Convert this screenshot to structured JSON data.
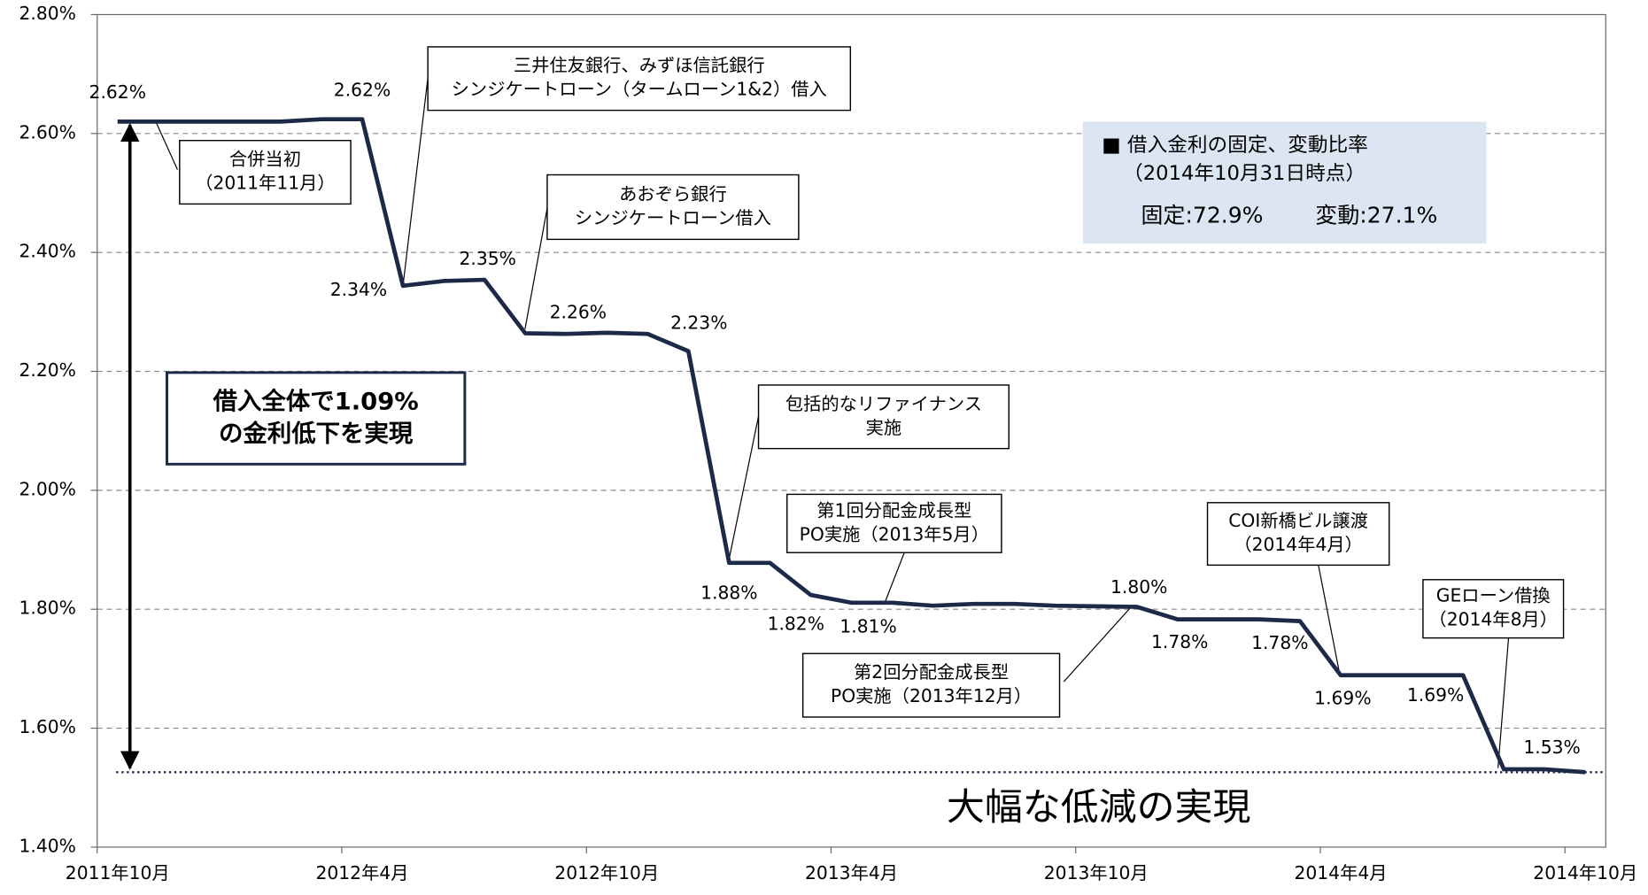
{
  "chart_data": {
    "type": "line",
    "categories": [
      "2011年10月",
      null,
      null,
      null,
      null,
      null,
      "2012年4月",
      null,
      null,
      null,
      null,
      null,
      "2012年10月",
      null,
      null,
      null,
      null,
      null,
      "2013年4月",
      null,
      null,
      null,
      null,
      null,
      "2013年10月",
      null,
      null,
      null,
      null,
      null,
      "2014年4月",
      null,
      null,
      null,
      null,
      null,
      "2014年10月"
    ],
    "series": [
      {
        "color": "#1c2a48",
        "values": [
          2.62,
          2.62,
          2.62,
          2.62,
          2.62,
          2.624,
          2.624,
          2.344,
          2.352,
          2.354,
          2.264,
          2.263,
          2.265,
          2.263,
          2.234,
          1.878,
          1.878,
          1.824,
          1.811,
          1.811,
          1.806,
          1.809,
          1.809,
          1.806,
          1.805,
          1.804,
          1.783,
          1.783,
          1.783,
          1.78,
          1.689,
          1.689,
          1.689,
          1.689,
          1.531,
          1.531,
          1.526
        ],
        "value_labels": [
          "2.62%",
          null,
          null,
          null,
          null,
          null,
          "2.62%",
          "2.34%",
          null,
          "2.35%",
          "2.26%",
          null,
          null,
          null,
          "2.23%",
          "1.88%",
          null,
          "1.82%",
          "1.81%",
          null,
          null,
          null,
          null,
          null,
          null,
          "1.80%",
          "1.78%",
          null,
          null,
          "1.78%",
          "1.69%",
          null,
          null,
          "1.69%",
          null,
          "1.53%",
          null
        ]
      }
    ],
    "ylim": [
      1.4,
      2.8
    ],
    "yticks": [
      {
        "value": 1.4,
        "label": "1.40%"
      },
      {
        "value": 1.6,
        "label": "1.60%"
      },
      {
        "value": 1.8,
        "label": "1.80%"
      },
      {
        "value": 2.0,
        "label": "2.00%"
      },
      {
        "value": 2.2,
        "label": "2.20%"
      },
      {
        "value": 2.4,
        "label": "2.40%"
      },
      {
        "value": 2.6,
        "label": "2.60%"
      },
      {
        "value": 2.8,
        "label": "2.80%"
      }
    ],
    "grid": true,
    "annotations": [
      {
        "lines": [
          "合併当初",
          "（2011年11月）"
        ]
      },
      {
        "lines": [
          "三井住友銀行、みずほ信託銀行",
          "シンジケートローン（タームローン1&2）借入"
        ]
      },
      {
        "lines": [
          "あおぞら銀行",
          "シンジケートローン借入"
        ]
      },
      {
        "lines": [
          "包括的なリファイナンス",
          "実施"
        ]
      },
      {
        "lines": [
          "第1回分配金成長型",
          "PO実施（2013年5月）"
        ]
      },
      {
        "lines": [
          "第2回分配金成長型",
          "PO実施（2013年12月）"
        ]
      },
      {
        "lines": [
          "COI新橋ビル譲渡",
          "（2014年4月）"
        ]
      },
      {
        "lines": [
          "GEローン借換",
          "（2014年8月）"
        ]
      }
    ],
    "info_box": {
      "lines": [
        "■ 借入金利の固定、変動比率",
        "（2014年10月31日時点）"
      ],
      "fixed": "固定:72.9%",
      "variable": "変動:27.1%"
    },
    "highlight_box": {
      "lines": [
        "借入全体で1.09%",
        "の金利低下を実現"
      ]
    },
    "caption": "大幅な低減の実現"
  }
}
